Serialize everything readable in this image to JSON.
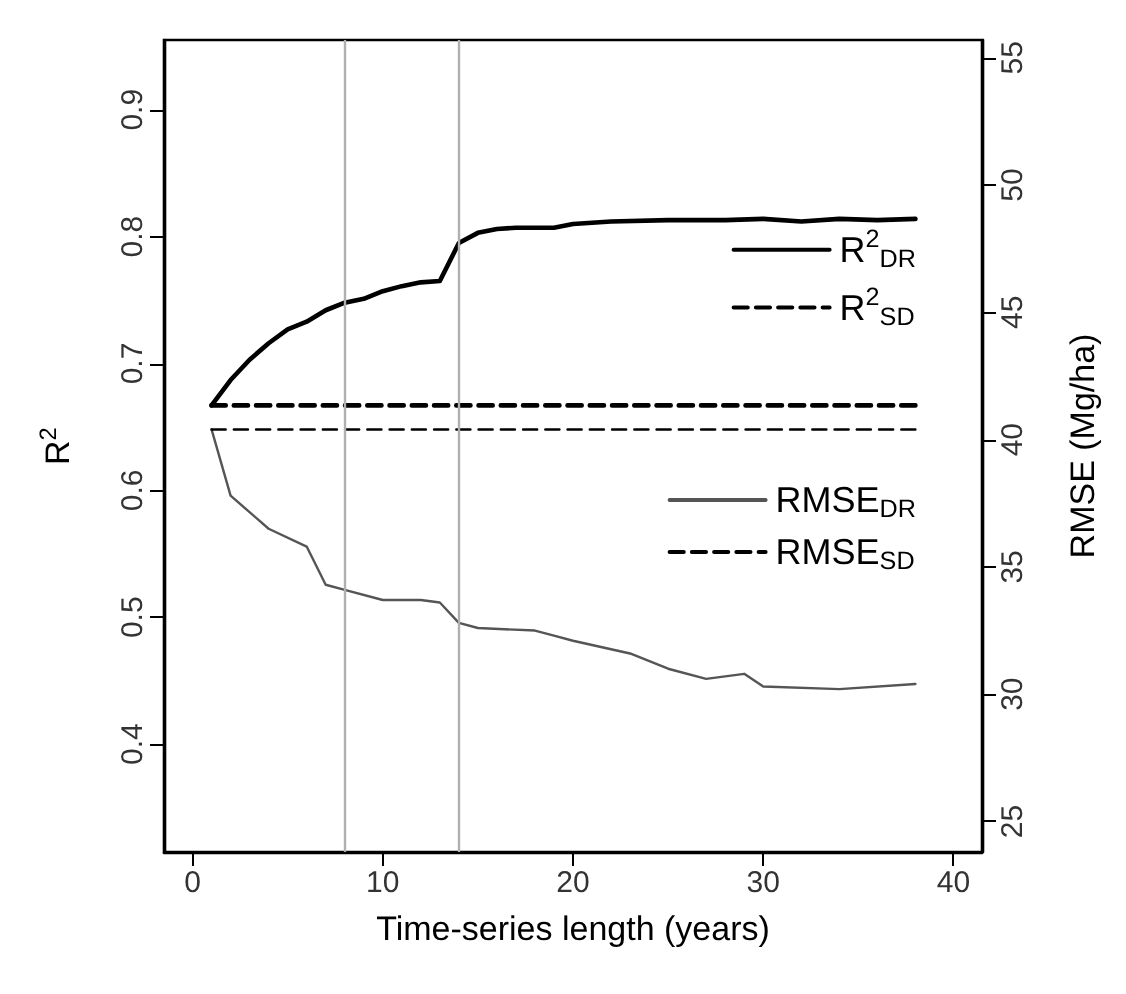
{
  "chart_data": {
    "type": "line",
    "xlabel": "Time-series length (years)",
    "ylabel": "R$^{2}$",
    "y2label": "RMSE (Mg/ha)",
    "xlim": [
      -1.5,
      41.5
    ],
    "xticks": [
      0,
      10,
      20,
      30,
      40
    ],
    "ylim": [
      0.315,
      0.955
    ],
    "yticks": [
      0.4,
      0.5,
      0.6,
      0.7,
      0.8,
      0.9
    ],
    "y2lim": [
      23.8,
      55.7
    ],
    "y2ticks": [
      25,
      30,
      35,
      40,
      45,
      50,
      55
    ],
    "grid": false,
    "legend": "top right",
    "marker": "none",
    "ref_lines": [
      {
        "axis": "x",
        "value": 8,
        "color": "#b0b0b0"
      },
      {
        "axis": "x",
        "value": 14,
        "color": "#b0b0b0"
      }
    ],
    "series": [
      {
        "name": "R$^{2}$$_{DR}$",
        "color": "#000000",
        "line_style": "solid",
        "x": [
          1,
          2,
          3,
          4,
          5,
          6,
          7,
          8,
          9,
          10,
          11,
          12,
          13,
          14,
          15,
          16,
          17,
          18,
          19,
          20,
          22,
          25,
          28,
          30,
          32,
          34,
          36,
          38
        ],
        "values": [
          0.667,
          0.687,
          0.703,
          0.716,
          0.727,
          0.733,
          0.742,
          0.748,
          0.751,
          0.757,
          0.761,
          0.764,
          0.765,
          0.795,
          0.803,
          0.806,
          0.807,
          0.807,
          0.807,
          0.81,
          0.812,
          0.813,
          0.813,
          0.814,
          0.812,
          0.814,
          0.813,
          0.814
        ]
      },
      {
        "name": "R$^{2}$$_{SD}$",
        "color": "#000000",
        "line_style": "dashed",
        "x": [
          1,
          38
        ],
        "values": [
          0.667,
          0.667
        ]
      },
      {
        "name": "RMSE$_{DR}$",
        "color": "#555555",
        "line_style": "solid",
        "axis": "y2",
        "x": [
          1,
          2,
          4,
          6,
          7,
          8,
          10,
          12,
          13,
          14,
          15,
          18,
          19,
          20,
          23,
          25,
          27,
          29,
          30,
          34,
          38
        ],
        "values": [
          40.4,
          37.8,
          36.5,
          35.8,
          34.3,
          34.1,
          33.7,
          33.7,
          33.6,
          32.8,
          32.6,
          32.5,
          32.3,
          32.1,
          31.6,
          31.0,
          30.6,
          30.8,
          30.3,
          30.2,
          30.4
        ]
      },
      {
        "name": "RMSE$_{SD}$",
        "color": "#000000",
        "line_style": "dashed",
        "axis": "y2",
        "x": [
          1,
          38
        ],
        "values": [
          40.4,
          40.4
        ]
      }
    ]
  }
}
